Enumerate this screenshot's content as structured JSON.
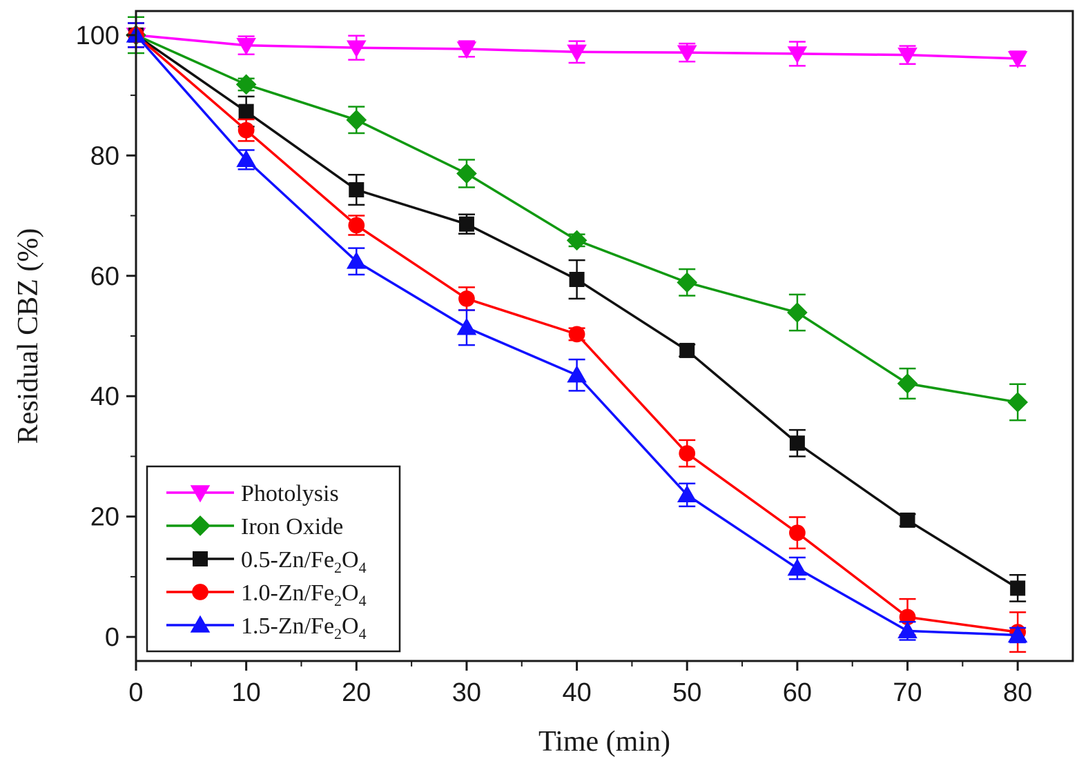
{
  "chart_data": {
    "type": "line",
    "title": "",
    "xlabel": "Time (min)",
    "ylabel": "Residual CBZ (%)",
    "xlim": [
      0,
      85
    ],
    "ylim": [
      -4,
      104
    ],
    "xticks": [
      0,
      10,
      20,
      30,
      40,
      50,
      60,
      70,
      80
    ],
    "xtick_labels": [
      "0",
      "10",
      "20",
      "30",
      "40",
      "50",
      "60",
      "70",
      "80"
    ],
    "yticks": [
      0,
      20,
      40,
      60,
      80,
      100
    ],
    "ytick_labels": [
      "0",
      "20",
      "40",
      "60",
      "80",
      "100"
    ],
    "grid": false,
    "legend_position": "bottom-left",
    "x": [
      0,
      10,
      20,
      30,
      40,
      50,
      60,
      70,
      80
    ],
    "series": [
      {
        "name": "Photolysis",
        "legend_parts": [
          {
            "t": "Photolysis",
            "sub": false
          }
        ],
        "color": "#ff00ff",
        "marker": "triangle-down",
        "values": [
          100,
          98.3,
          97.9,
          97.7,
          97.2,
          97.1,
          96.9,
          96.7,
          96.1
        ],
        "errors": [
          2.0,
          1.5,
          2.0,
          1.3,
          1.8,
          1.5,
          2.0,
          1.5,
          1.2
        ]
      },
      {
        "name": "Iron Oxide",
        "legend_parts": [
          {
            "t": "Iron Oxide",
            "sub": false
          }
        ],
        "color": "#119911",
        "marker": "diamond",
        "values": [
          100,
          91.8,
          85.9,
          77.0,
          65.9,
          58.9,
          53.9,
          42.1,
          39.0
        ],
        "errors": [
          3.0,
          1.0,
          2.2,
          2.3,
          1.0,
          2.2,
          3.0,
          2.5,
          3.0
        ]
      },
      {
        "name": "0.5-Zn/Fe2O4",
        "legend_parts": [
          {
            "t": "0.5-Zn/Fe",
            "sub": false
          },
          {
            "t": "2",
            "sub": true
          },
          {
            "t": "O",
            "sub": false
          },
          {
            "t": "4",
            "sub": true
          }
        ],
        "color": "#111111",
        "marker": "square",
        "values": [
          100,
          87.3,
          74.3,
          68.6,
          59.4,
          47.6,
          32.2,
          19.4,
          8.1
        ],
        "errors": [
          2.0,
          2.5,
          2.5,
          1.6,
          3.2,
          1.0,
          2.2,
          1.0,
          2.2
        ]
      },
      {
        "name": "1.0-Zn/Fe2O4",
        "legend_parts": [
          {
            "t": "1.0-Zn/Fe",
            "sub": false
          },
          {
            "t": "2",
            "sub": true
          },
          {
            "t": "O",
            "sub": false
          },
          {
            "t": "4",
            "sub": true
          }
        ],
        "color": "#ff0000",
        "marker": "circle",
        "values": [
          100,
          84.2,
          68.4,
          56.2,
          50.3,
          30.5,
          17.3,
          3.3,
          0.8
        ],
        "errors": [
          2.0,
          1.8,
          1.6,
          1.9,
          1.0,
          2.2,
          2.6,
          3.0,
          3.3
        ]
      },
      {
        "name": "1.5-Zn/Fe2O4",
        "legend_parts": [
          {
            "t": "1.5-Zn/Fe",
            "sub": false
          },
          {
            "t": "2",
            "sub": true
          },
          {
            "t": "O",
            "sub": false
          },
          {
            "t": "4",
            "sub": true
          }
        ],
        "color": "#1111ff",
        "marker": "triangle-up",
        "values": [
          100,
          79.3,
          62.4,
          51.4,
          43.5,
          23.6,
          11.4,
          1.0,
          0.3
        ],
        "errors": [
          2.0,
          1.6,
          2.2,
          2.9,
          2.6,
          1.9,
          1.8,
          1.5,
          1.2
        ]
      }
    ]
  }
}
